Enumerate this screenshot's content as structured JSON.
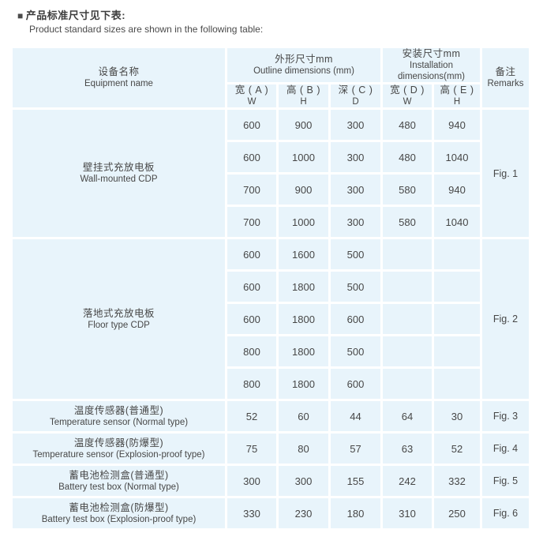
{
  "page": {
    "bullet": "■",
    "title_zh": "产品标准尺寸见下表:",
    "title_en": "Product standard sizes are shown in the following table:"
  },
  "table": {
    "header": {
      "equipment_zh": "设备名称",
      "equipment_en": "Equipment name",
      "outline_zh": "外形尺寸mm",
      "outline_en": "Outline dimensions (mm)",
      "install_zh": "安装尺寸mm",
      "install_en": "Installation dimensions(mm)",
      "remarks_zh": "备注",
      "remarks_en": "Remarks",
      "cols": [
        {
          "zh": "宽 ( A )",
          "en": "W"
        },
        {
          "zh": "高 ( B )",
          "en": "H"
        },
        {
          "zh": "深 ( C )",
          "en": "D"
        },
        {
          "zh": "宽 ( D )",
          "en": "W"
        },
        {
          "zh": "高 ( E )",
          "en": "H"
        }
      ]
    },
    "groups": [
      {
        "name_zh": "壁挂式充放电板",
        "name_en": "Wall-mounted CDP",
        "remark": "Fig. 1",
        "rows": [
          [
            "600",
            "900",
            "300",
            "480",
            "940"
          ],
          [
            "600",
            "1000",
            "300",
            "480",
            "1040"
          ],
          [
            "700",
            "900",
            "300",
            "580",
            "940"
          ],
          [
            "700",
            "1000",
            "300",
            "580",
            "1040"
          ]
        ]
      },
      {
        "name_zh": "落地式充放电板",
        "name_en": "Floor type CDP",
        "remark": "Fig. 2",
        "rows": [
          [
            "600",
            "1600",
            "500",
            "",
            ""
          ],
          [
            "600",
            "1800",
            "500",
            "",
            ""
          ],
          [
            "600",
            "1800",
            "600",
            "",
            ""
          ],
          [
            "800",
            "1800",
            "500",
            "",
            ""
          ],
          [
            "800",
            "1800",
            "600",
            "",
            ""
          ]
        ]
      },
      {
        "name_zh": "温度传感器(普通型)",
        "name_en": "Temperature sensor (Normal type)",
        "remark": "Fig. 3",
        "rows": [
          [
            "52",
            "60",
            "44",
            "64",
            "30"
          ]
        ]
      },
      {
        "name_zh": "温度传感器(防爆型)",
        "name_en": "Temperature sensor (Explosion-proof type)",
        "remark": "Fig. 4",
        "rows": [
          [
            "75",
            "80",
            "57",
            "63",
            "52"
          ]
        ]
      },
      {
        "name_zh": "蓄电池检测盒(普通型)",
        "name_en": "Battery test box (Normal type)",
        "remark": "Fig. 5",
        "rows": [
          [
            "300",
            "300",
            "155",
            "242",
            "332"
          ]
        ]
      },
      {
        "name_zh": "蓄电池检测盒(防爆型)",
        "name_en": "Battery test box (Explosion-proof type)",
        "remark": "Fig. 6",
        "rows": [
          [
            "330",
            "230",
            "180",
            "310",
            "250"
          ]
        ]
      }
    ],
    "colors": {
      "header_bg": "#c2e8f6",
      "cell_bg": "#e8f4fb",
      "grid_line": "#ffffff",
      "text": "#474747"
    }
  }
}
